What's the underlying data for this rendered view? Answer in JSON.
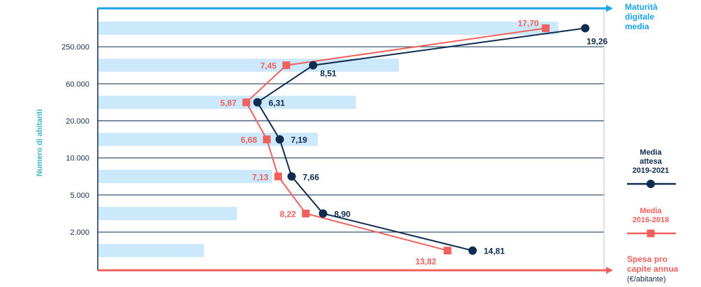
{
  "colors": {
    "expected": "#0f2b4e",
    "past": "#f0605d",
    "bars": "#cce9fb",
    "top_axis": "#1aa3e8",
    "bottom_axis": "#f0605d",
    "ylabel": "#3fb6c8"
  },
  "chart_data": {
    "type": "line",
    "ylabel": "Numero di abitanti",
    "y_tick_labels": [
      "250.000",
      "60.000",
      "20.000",
      "10.000",
      "5.000",
      "2.000"
    ],
    "top_axis_title": [
      "Maturità",
      "digitale",
      "media"
    ],
    "bottom_axis_title": [
      "Spesa pro",
      "capite annua"
    ],
    "bottom_axis_unit": "(€/abitante)",
    "xlim": [
      0,
      20
    ],
    "bar_series": {
      "name": "Maturità digitale media",
      "values": [
        18.2,
        11.9,
        10.2,
        8.7,
        6.9,
        5.5,
        4.2
      ]
    },
    "series": [
      {
        "name": "Media attesa 2019-2021",
        "legend": [
          "Media",
          "attesa",
          "2019-2021"
        ],
        "marker": "circle",
        "values": [
          19.26,
          8.51,
          6.31,
          7.19,
          7.66,
          8.9,
          14.81
        ],
        "labels": [
          "19,26",
          "8,51",
          "6,31",
          "7,19",
          "7,66",
          "8,90",
          "14,81"
        ]
      },
      {
        "name": "Media 2016-2018",
        "legend": [
          "Media",
          "2016-2018"
        ],
        "marker": "square",
        "values": [
          17.7,
          7.45,
          5.87,
          6.68,
          7.13,
          8.22,
          13.82
        ],
        "labels": [
          "17,70",
          "7,45",
          "5,87",
          "6,68",
          "7,13",
          "8,22",
          "13,82"
        ]
      }
    ]
  }
}
